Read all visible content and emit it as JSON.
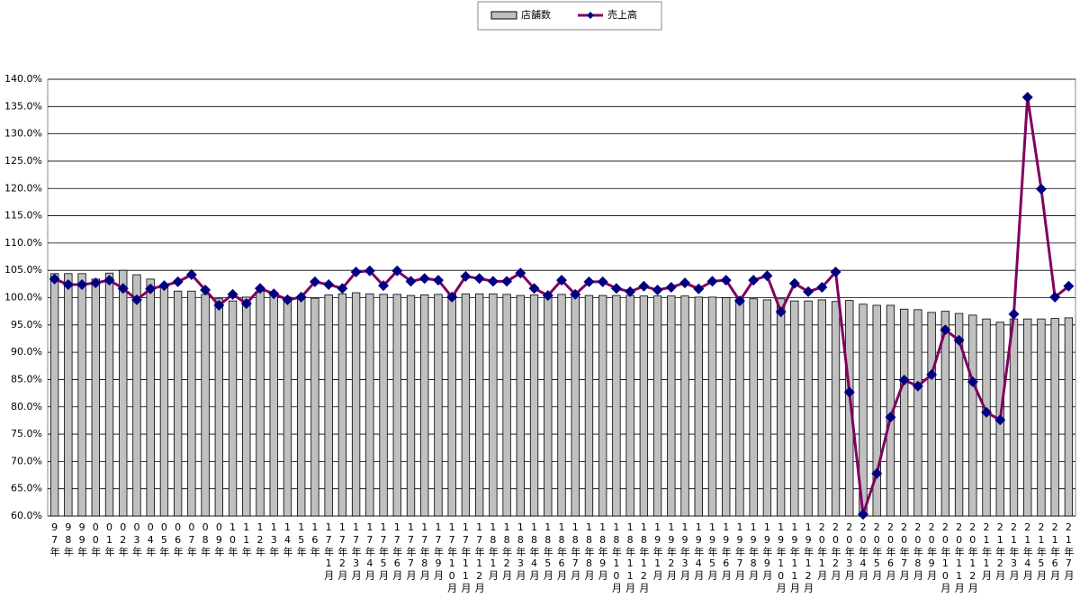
{
  "chart_data": {
    "type": "bar_line",
    "categories": [
      "97年",
      "98年",
      "99年",
      "00年",
      "01年",
      "02年",
      "03年",
      "04年",
      "05年",
      "06年",
      "07年",
      "08年",
      "09年",
      "10年",
      "11年",
      "12年",
      "13年",
      "14年",
      "15年",
      "16年",
      "17年1月",
      "17年2月",
      "17年3月",
      "17年4月",
      "17年5月",
      "17年6月",
      "17年7月",
      "17年8月",
      "17年9月",
      "17年10月",
      "17年11月",
      "17年12月",
      "18年1月",
      "18年2月",
      "18年3月",
      "18年4月",
      "18年5月",
      "18年6月",
      "18年7月",
      "18年8月",
      "18年9月",
      "18年10月",
      "18年11月",
      "18年12月",
      "19年1月",
      "19年2月",
      "19年3月",
      "19年4月",
      "19年5月",
      "19年6月",
      "19年7月",
      "19年8月",
      "19年9月",
      "19年10月",
      "19年11月",
      "19年12月",
      "20年1月",
      "20年2月",
      "20年3月",
      "20年4月",
      "20年5月",
      "20年6月",
      "20年7月",
      "20年8月",
      "20年9月",
      "20年10月",
      "20年11月",
      "20年12月",
      "21年1月",
      "21年2月",
      "21年3月",
      "21年4月",
      "21年5月",
      "21年6月",
      "21年7月"
    ],
    "series": [
      {
        "name": "店舗数",
        "type": "bar",
        "color": "#c0c0c0",
        "values": [
          104.4,
          104.4,
          104.4,
          103.4,
          104.5,
          105.0,
          104.2,
          103.4,
          102.2,
          101.2,
          101.2,
          100.6,
          99.8,
          99.4,
          100.1,
          101.2,
          100.9,
          100.1,
          100.2,
          99.9,
          100.5,
          100.7,
          100.9,
          100.7,
          100.6,
          100.6,
          100.4,
          100.5,
          100.6,
          100.7,
          100.7,
          100.7,
          100.7,
          100.6,
          100.4,
          100.5,
          100.6,
          100.6,
          100.7,
          100.4,
          100.4,
          100.4,
          100.4,
          100.3,
          100.3,
          100.3,
          100.3,
          100.1,
          100.1,
          100.0,
          99.8,
          99.8,
          99.6,
          99.8,
          99.4,
          99.4,
          99.6,
          99.3,
          99.5,
          98.8,
          98.6,
          98.6,
          97.9,
          97.8,
          97.3,
          97.5,
          97.1,
          96.8,
          96.1,
          95.5,
          96.1,
          96.1,
          96.1,
          96.2,
          96.3
        ]
      },
      {
        "name": "売上高",
        "type": "line",
        "color": "#800060",
        "marker_color": "#000080",
        "values": [
          103.4,
          102.4,
          102.4,
          102.7,
          103.2,
          101.7,
          99.6,
          101.6,
          102.2,
          102.9,
          104.2,
          101.4,
          98.6,
          100.6,
          98.9,
          101.7,
          100.7,
          99.6,
          100.1,
          102.9,
          102.4,
          101.7,
          104.7,
          104.9,
          102.2,
          104.9,
          103.0,
          103.5,
          103.2,
          100.1,
          103.9,
          103.5,
          103.0,
          103.0,
          104.5,
          101.7,
          100.4,
          103.2,
          100.6,
          102.9,
          102.9,
          101.7,
          101.1,
          102.1,
          101.4,
          101.9,
          102.7,
          101.6,
          103.0,
          103.2,
          99.4,
          103.2,
          104.0,
          97.4,
          102.6,
          101.1,
          101.9,
          104.7,
          82.7,
          60.3,
          67.8,
          78.1,
          84.9,
          83.8,
          85.9,
          94.1,
          92.2,
          84.6,
          79.0,
          77.6,
          97.0,
          136.7,
          119.9,
          100.1,
          102.1
        ]
      }
    ],
    "ylim": [
      60,
      140
    ],
    "yticks": [
      {
        "value": 60,
        "label": "60.0%"
      },
      {
        "value": 65,
        "label": "65.0%"
      },
      {
        "value": 70,
        "label": "70.0%"
      },
      {
        "value": 75,
        "label": "75.0%"
      },
      {
        "value": 80,
        "label": "80.0%"
      },
      {
        "value": 85,
        "label": "85.0%"
      },
      {
        "value": 90,
        "label": "90.0%"
      },
      {
        "value": 95,
        "label": "95.0%"
      },
      {
        "value": 100,
        "label": "100.0%"
      },
      {
        "value": 105,
        "label": "105.0%"
      },
      {
        "value": 110,
        "label": "110.0%"
      },
      {
        "value": 115,
        "label": "115.0%"
      },
      {
        "value": 120,
        "label": "120.0%"
      },
      {
        "value": 125,
        "label": "125.0%"
      },
      {
        "value": 130,
        "label": "130.0%"
      },
      {
        "value": 135,
        "label": "135.0%"
      },
      {
        "value": 140,
        "label": "140.0%"
      }
    ],
    "grid": true,
    "legend": "top"
  }
}
